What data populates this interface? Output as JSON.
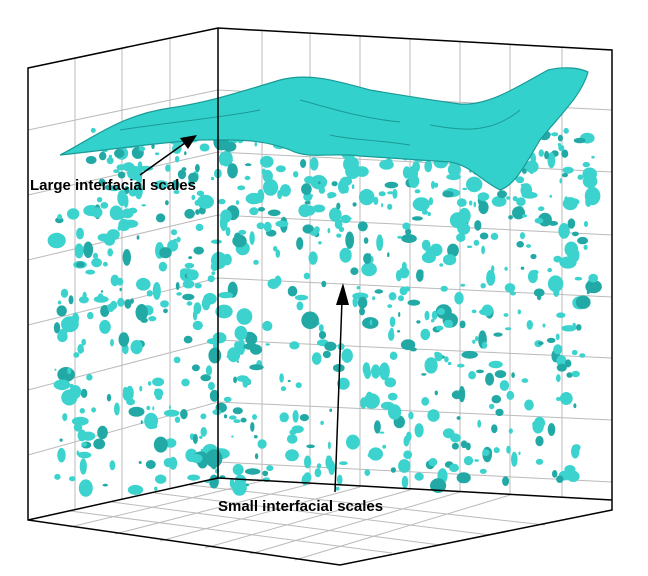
{
  "annotations": {
    "large": "Large interfacial scales",
    "small": "Small interfacial scales"
  }
}
